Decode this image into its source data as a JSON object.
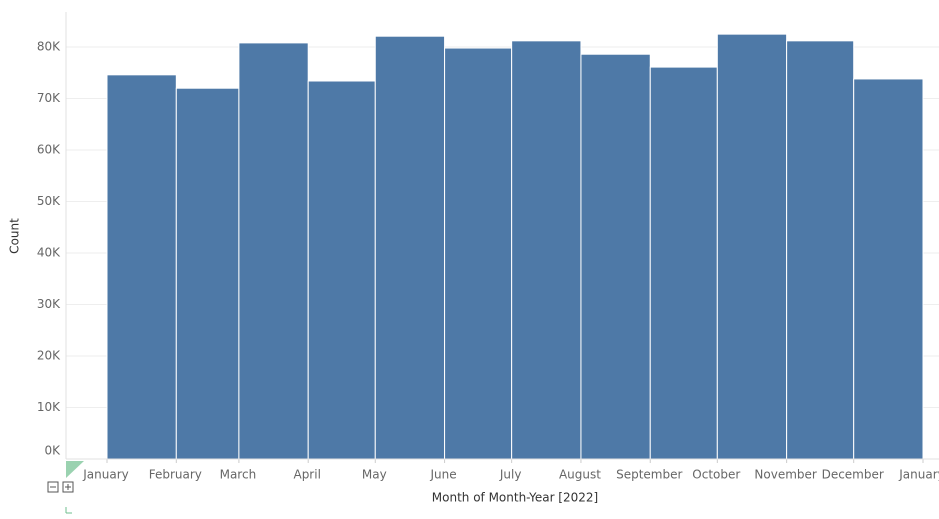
{
  "chart_data": {
    "type": "histogram",
    "x_label": "Month of Month-Year [2022]",
    "y_label": "Count",
    "bins": [
      "January",
      "February",
      "March",
      "April",
      "May",
      "June",
      "July",
      "August",
      "September",
      "October",
      "November",
      "December",
      "January"
    ],
    "values": [
      74600,
      72000,
      80800,
      73400,
      82100,
      79800,
      81200,
      78600,
      76100,
      82500,
      81200,
      73800
    ],
    "color": "#4e79a7",
    "ylim": [
      0,
      86800
    ],
    "yticks": [
      {
        "value": 0,
        "label": "0K"
      },
      {
        "value": 10000,
        "label": "10K"
      },
      {
        "value": 20000,
        "label": "20K"
      },
      {
        "value": 30000,
        "label": "30K"
      },
      {
        "value": 40000,
        "label": "40K"
      },
      {
        "value": 50000,
        "label": "50K"
      },
      {
        "value": 60000,
        "label": "60K"
      },
      {
        "value": 70000,
        "label": "70K"
      },
      {
        "value": 80000,
        "label": "80K"
      }
    ],
    "grid": true
  }
}
